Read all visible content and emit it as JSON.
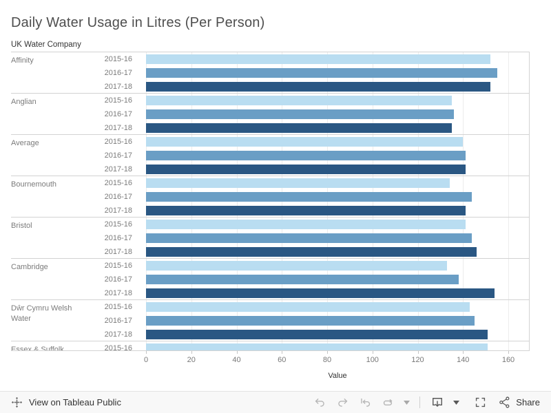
{
  "title": "Daily Water Usage in Litres (Per Person)",
  "row_header": "UK Water Company",
  "chart_data": {
    "type": "bar",
    "orientation": "horizontal",
    "title": "Daily Water Usage in Litres (Per Person)",
    "row_header": "UK Water Company",
    "xlabel": "Value",
    "xlim": [
      0,
      170
    ],
    "x_ticks": [
      0,
      20,
      40,
      60,
      80,
      100,
      120,
      140,
      160
    ],
    "grid": true,
    "years": [
      "2015-16",
      "2016-17",
      "2017-18"
    ],
    "year_colors": [
      "#b9ddf1",
      "#6a9ec5",
      "#2a5783"
    ],
    "groups": [
      {
        "company": "Affinity",
        "values": [
          152,
          155,
          152
        ]
      },
      {
        "company": "Anglian",
        "values": [
          135,
          136,
          135
        ]
      },
      {
        "company": "Average",
        "values": [
          140,
          141,
          141
        ]
      },
      {
        "company": "Bournemouth",
        "values": [
          134,
          144,
          141
        ]
      },
      {
        "company": "Bristol",
        "values": [
          141,
          144,
          146
        ]
      },
      {
        "company": "Cambridge",
        "values": [
          133,
          138,
          154
        ]
      },
      {
        "company": "Dŵr Cymru Welsh Water",
        "values": [
          143,
          145,
          151
        ]
      },
      {
        "company": "Essex & Suffolk",
        "values": [
          151
        ],
        "clipped": true
      }
    ]
  },
  "toolbar": {
    "view_label": "View on Tableau Public",
    "share_label": "Share",
    "icon_names": [
      "tableau-logo",
      "undo",
      "redo",
      "replay",
      "refresh",
      "caret-down",
      "download",
      "caret-down",
      "fullscreen",
      "share"
    ],
    "disabled_icon_color": "#b5b5b5",
    "active_icon_color": "#595959"
  }
}
